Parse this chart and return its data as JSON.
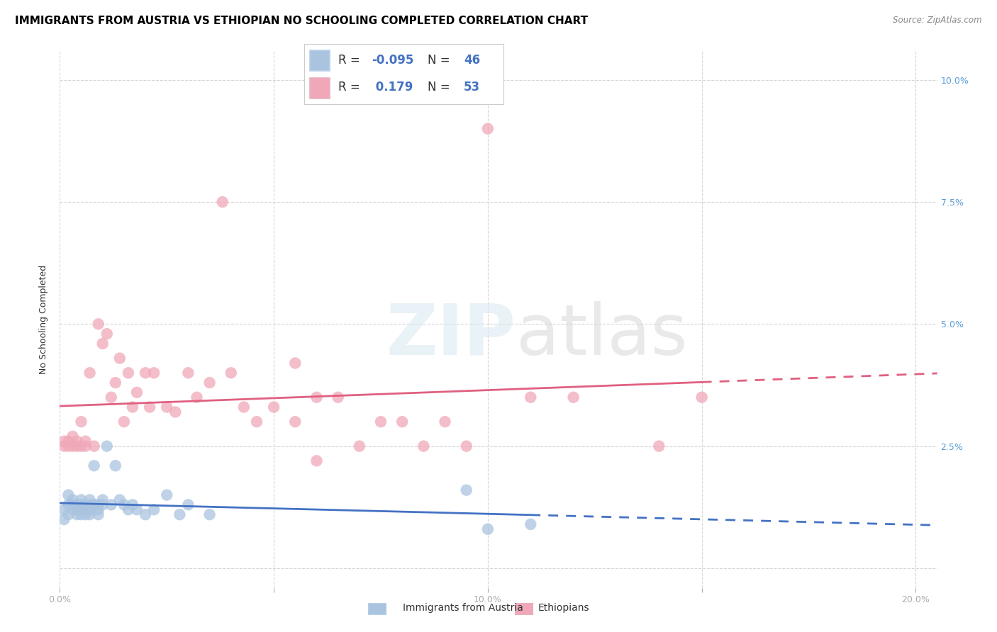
{
  "title": "IMMIGRANTS FROM AUSTRIA VS ETHIOPIAN NO SCHOOLING COMPLETED CORRELATION CHART",
  "source": "Source: ZipAtlas.com",
  "ylabel_label": "No Schooling Completed",
  "xlim": [
    0.0,
    0.205
  ],
  "ylim": [
    -0.004,
    0.106
  ],
  "austria_R": -0.095,
  "austria_N": 46,
  "ethiopia_R": 0.179,
  "ethiopia_N": 53,
  "austria_color": "#aac4e0",
  "ethiopia_color": "#f0a8b8",
  "austria_line_color": "#4472c4",
  "ethiopia_line_color": "#e06080",
  "background_color": "#ffffff",
  "grid_color": "#cccccc",
  "austria_x": [
    0.001,
    0.001,
    0.002,
    0.002,
    0.002,
    0.003,
    0.003,
    0.003,
    0.004,
    0.004,
    0.004,
    0.005,
    0.005,
    0.005,
    0.005,
    0.006,
    0.006,
    0.006,
    0.007,
    0.007,
    0.007,
    0.007,
    0.008,
    0.008,
    0.009,
    0.009,
    0.009,
    0.01,
    0.01,
    0.011,
    0.012,
    0.013,
    0.014,
    0.015,
    0.016,
    0.017,
    0.018,
    0.02,
    0.022,
    0.025,
    0.028,
    0.03,
    0.035,
    0.095,
    0.1,
    0.11
  ],
  "austria_y": [
    0.01,
    0.012,
    0.015,
    0.013,
    0.011,
    0.014,
    0.013,
    0.012,
    0.013,
    0.012,
    0.011,
    0.014,
    0.013,
    0.012,
    0.011,
    0.013,
    0.012,
    0.011,
    0.014,
    0.013,
    0.012,
    0.011,
    0.013,
    0.021,
    0.013,
    0.012,
    0.011,
    0.014,
    0.013,
    0.025,
    0.013,
    0.021,
    0.014,
    0.013,
    0.012,
    0.013,
    0.012,
    0.011,
    0.012,
    0.015,
    0.011,
    0.013,
    0.011,
    0.016,
    0.008,
    0.009
  ],
  "ethiopia_x": [
    0.001,
    0.001,
    0.002,
    0.002,
    0.003,
    0.003,
    0.004,
    0.004,
    0.005,
    0.005,
    0.006,
    0.006,
    0.007,
    0.008,
    0.009,
    0.01,
    0.011,
    0.012,
    0.013,
    0.014,
    0.015,
    0.016,
    0.017,
    0.018,
    0.02,
    0.021,
    0.022,
    0.025,
    0.027,
    0.03,
    0.032,
    0.035,
    0.038,
    0.04,
    0.043,
    0.046,
    0.05,
    0.055,
    0.06,
    0.065,
    0.07,
    0.075,
    0.08,
    0.09,
    0.095,
    0.1,
    0.11,
    0.12,
    0.14,
    0.15,
    0.055,
    0.06,
    0.085
  ],
  "ethiopia_y": [
    0.026,
    0.025,
    0.026,
    0.025,
    0.027,
    0.025,
    0.026,
    0.025,
    0.03,
    0.025,
    0.026,
    0.025,
    0.04,
    0.025,
    0.05,
    0.046,
    0.048,
    0.035,
    0.038,
    0.043,
    0.03,
    0.04,
    0.033,
    0.036,
    0.04,
    0.033,
    0.04,
    0.033,
    0.032,
    0.04,
    0.035,
    0.038,
    0.075,
    0.04,
    0.033,
    0.03,
    0.033,
    0.03,
    0.022,
    0.035,
    0.025,
    0.03,
    0.03,
    0.03,
    0.025,
    0.09,
    0.035,
    0.035,
    0.025,
    0.035,
    0.042,
    0.035,
    0.025
  ],
  "watermark_zip": "ZIP",
  "watermark_atlas": "atlas",
  "legend_R_color": "#4472c4",
  "legend_N_color": "#4472c4",
  "legend_text_color": "#333333",
  "right_tick_color": "#5b9bd5",
  "title_fontsize": 11,
  "axis_label_fontsize": 9,
  "tick_fontsize": 9
}
